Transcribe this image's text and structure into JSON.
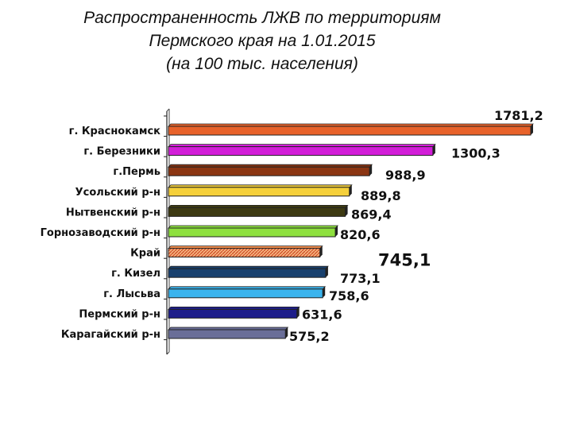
{
  "title_lines": [
    "Распространенность  ЛЖВ по территориям",
    "Пермского края на 1.01.2015",
    "(на 100 тыс. населения)"
  ],
  "chart_data": {
    "type": "bar",
    "orientation": "horizontal",
    "title": "Распространенность  ЛЖВ по территориям Пермского края на 1.01.2015 (на 100 тыс. населения)",
    "categories": [
      "г. Краснокамск",
      "г. Березники",
      "г.Пермь",
      "Усольский р-н",
      "Нытвенский р-н",
      "Горнозаводский р-н",
      "Край",
      "г. Кизел",
      "г. Лысьва",
      "Пермский р-н",
      "Карагайский р-н"
    ],
    "values": [
      1781.2,
      1300.3,
      988.9,
      889.8,
      869.4,
      820.6,
      745.1,
      773.1,
      758.6,
      631.6,
      575.2
    ],
    "value_labels": [
      "1781,2",
      "1300,3",
      "988,9",
      "889,8",
      "869,4",
      "820,6",
      "745,1",
      "773,1",
      "758,6",
      "631,6",
      "575,2"
    ],
    "colors": [
      "#e8622a",
      "#d21ed8",
      "#8b3512",
      "#f5d03a",
      "#3d3a12",
      "#8ee03e",
      "#f08a4a",
      "#18406e",
      "#3ab4ee",
      "#1e1e8a",
      "#6a6e98"
    ],
    "xlim": [
      0,
      1781.2
    ],
    "xlabel": "",
    "ylabel": "",
    "grid": false,
    "legend": "none"
  }
}
